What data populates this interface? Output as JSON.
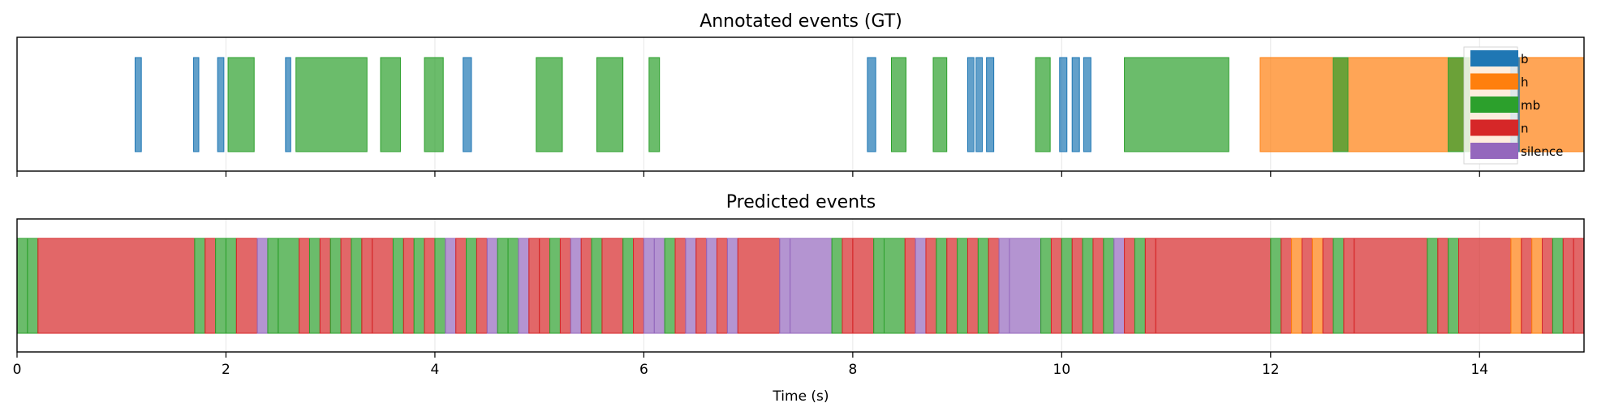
{
  "chart_data": [
    {
      "type": "timeline",
      "title": "Annotated events (GT)",
      "xlim": [
        0,
        15
      ],
      "grid": true,
      "legend": {
        "placement": "top-right",
        "entries": [
          {
            "label": "b",
            "color": "#1f77b4"
          },
          {
            "label": "h",
            "color": "#ff7f0e"
          },
          {
            "label": "mb",
            "color": "#2ca02c"
          },
          {
            "label": "n",
            "color": "#d62728"
          },
          {
            "label": "silence",
            "color": "#9467bd"
          }
        ]
      },
      "events": [
        {
          "start": 1.13,
          "end": 1.19,
          "label": "b"
        },
        {
          "start": 1.69,
          "end": 1.74,
          "label": "b"
        },
        {
          "start": 1.92,
          "end": 1.98,
          "label": "b"
        },
        {
          "start": 2.02,
          "end": 2.27,
          "label": "mb"
        },
        {
          "start": 2.57,
          "end": 2.62,
          "label": "b"
        },
        {
          "start": 2.67,
          "end": 3.35,
          "label": "mb"
        },
        {
          "start": 3.48,
          "end": 3.67,
          "label": "mb"
        },
        {
          "start": 3.9,
          "end": 4.08,
          "label": "mb"
        },
        {
          "start": 4.27,
          "end": 4.35,
          "label": "b"
        },
        {
          "start": 4.97,
          "end": 5.22,
          "label": "mb"
        },
        {
          "start": 5.55,
          "end": 5.8,
          "label": "mb"
        },
        {
          "start": 6.05,
          "end": 6.15,
          "label": "mb"
        },
        {
          "start": 8.14,
          "end": 8.22,
          "label": "b"
        },
        {
          "start": 8.37,
          "end": 8.51,
          "label": "mb"
        },
        {
          "start": 8.77,
          "end": 8.9,
          "label": "mb"
        },
        {
          "start": 9.1,
          "end": 9.16,
          "label": "b"
        },
        {
          "start": 9.18,
          "end": 9.24,
          "label": "b"
        },
        {
          "start": 9.28,
          "end": 9.35,
          "label": "b"
        },
        {
          "start": 9.75,
          "end": 9.89,
          "label": "mb"
        },
        {
          "start": 9.98,
          "end": 10.05,
          "label": "b"
        },
        {
          "start": 10.1,
          "end": 10.17,
          "label": "b"
        },
        {
          "start": 10.21,
          "end": 10.28,
          "label": "b"
        },
        {
          "start": 10.6,
          "end": 11.6,
          "label": "mb"
        },
        {
          "start": 11.9,
          "end": 15.0,
          "label": "h"
        },
        {
          "start": 12.6,
          "end": 12.74,
          "label": "mb"
        },
        {
          "start": 13.7,
          "end": 13.9,
          "label": "mb"
        },
        {
          "start": 14.3,
          "end": 14.38,
          "label": "b"
        }
      ]
    },
    {
      "type": "timeline",
      "title": "Predicted events",
      "xlim": [
        0,
        15
      ],
      "xlabel": "Time (s)",
      "xticks": [
        0,
        2,
        4,
        6,
        8,
        10,
        12,
        14
      ],
      "grid": true,
      "events": [
        {
          "start": 0.0,
          "end": 0.1,
          "label": "mb"
        },
        {
          "start": 0.1,
          "end": 0.2,
          "label": "mb"
        },
        {
          "start": 0.2,
          "end": 1.7,
          "label": "n"
        },
        {
          "start": 1.7,
          "end": 1.8,
          "label": "mb"
        },
        {
          "start": 1.8,
          "end": 1.9,
          "label": "n"
        },
        {
          "start": 1.9,
          "end": 2.0,
          "label": "mb"
        },
        {
          "start": 2.0,
          "end": 2.1,
          "label": "mb"
        },
        {
          "start": 2.1,
          "end": 2.3,
          "label": "n"
        },
        {
          "start": 2.3,
          "end": 2.4,
          "label": "silence"
        },
        {
          "start": 2.4,
          "end": 2.5,
          "label": "mb"
        },
        {
          "start": 2.5,
          "end": 2.7,
          "label": "mb"
        },
        {
          "start": 2.7,
          "end": 2.8,
          "label": "n"
        },
        {
          "start": 2.8,
          "end": 2.9,
          "label": "mb"
        },
        {
          "start": 2.9,
          "end": 3.0,
          "label": "n"
        },
        {
          "start": 3.0,
          "end": 3.1,
          "label": "mb"
        },
        {
          "start": 3.1,
          "end": 3.2,
          "label": "n"
        },
        {
          "start": 3.2,
          "end": 3.3,
          "label": "mb"
        },
        {
          "start": 3.3,
          "end": 3.4,
          "label": "n"
        },
        {
          "start": 3.4,
          "end": 3.6,
          "label": "n"
        },
        {
          "start": 3.6,
          "end": 3.7,
          "label": "mb"
        },
        {
          "start": 3.7,
          "end": 3.8,
          "label": "n"
        },
        {
          "start": 3.8,
          "end": 3.9,
          "label": "mb"
        },
        {
          "start": 3.9,
          "end": 4.0,
          "label": "n"
        },
        {
          "start": 4.0,
          "end": 4.1,
          "label": "mb"
        },
        {
          "start": 4.1,
          "end": 4.2,
          "label": "silence"
        },
        {
          "start": 4.2,
          "end": 4.3,
          "label": "n"
        },
        {
          "start": 4.3,
          "end": 4.4,
          "label": "mb"
        },
        {
          "start": 4.4,
          "end": 4.5,
          "label": "n"
        },
        {
          "start": 4.5,
          "end": 4.6,
          "label": "silence"
        },
        {
          "start": 4.6,
          "end": 4.7,
          "label": "mb"
        },
        {
          "start": 4.7,
          "end": 4.8,
          "label": "mb"
        },
        {
          "start": 4.8,
          "end": 4.9,
          "label": "silence"
        },
        {
          "start": 4.9,
          "end": 5.0,
          "label": "n"
        },
        {
          "start": 5.0,
          "end": 5.1,
          "label": "n"
        },
        {
          "start": 5.1,
          "end": 5.2,
          "label": "mb"
        },
        {
          "start": 5.2,
          "end": 5.3,
          "label": "n"
        },
        {
          "start": 5.3,
          "end": 5.4,
          "label": "silence"
        },
        {
          "start": 5.4,
          "end": 5.5,
          "label": "n"
        },
        {
          "start": 5.5,
          "end": 5.6,
          "label": "mb"
        },
        {
          "start": 5.6,
          "end": 5.8,
          "label": "n"
        },
        {
          "start": 5.8,
          "end": 5.9,
          "label": "mb"
        },
        {
          "start": 5.9,
          "end": 6.0,
          "label": "n"
        },
        {
          "start": 6.0,
          "end": 6.1,
          "label": "silence"
        },
        {
          "start": 6.1,
          "end": 6.2,
          "label": "silence"
        },
        {
          "start": 6.2,
          "end": 6.3,
          "label": "mb"
        },
        {
          "start": 6.3,
          "end": 6.4,
          "label": "n"
        },
        {
          "start": 6.4,
          "end": 6.5,
          "label": "silence"
        },
        {
          "start": 6.5,
          "end": 6.6,
          "label": "n"
        },
        {
          "start": 6.6,
          "end": 6.7,
          "label": "silence"
        },
        {
          "start": 6.7,
          "end": 6.8,
          "label": "n"
        },
        {
          "start": 6.8,
          "end": 6.9,
          "label": "silence"
        },
        {
          "start": 6.9,
          "end": 7.3,
          "label": "n"
        },
        {
          "start": 7.3,
          "end": 7.4,
          "label": "silence"
        },
        {
          "start": 7.4,
          "end": 7.8,
          "label": "silence"
        },
        {
          "start": 7.8,
          "end": 7.9,
          "label": "mb"
        },
        {
          "start": 7.9,
          "end": 8.0,
          "label": "n"
        },
        {
          "start": 8.0,
          "end": 8.2,
          "label": "n"
        },
        {
          "start": 8.2,
          "end": 8.3,
          "label": "mb"
        },
        {
          "start": 8.3,
          "end": 8.5,
          "label": "mb"
        },
        {
          "start": 8.5,
          "end": 8.6,
          "label": "n"
        },
        {
          "start": 8.6,
          "end": 8.7,
          "label": "silence"
        },
        {
          "start": 8.7,
          "end": 8.8,
          "label": "n"
        },
        {
          "start": 8.8,
          "end": 8.9,
          "label": "mb"
        },
        {
          "start": 8.9,
          "end": 9.0,
          "label": "n"
        },
        {
          "start": 9.0,
          "end": 9.1,
          "label": "mb"
        },
        {
          "start": 9.1,
          "end": 9.2,
          "label": "n"
        },
        {
          "start": 9.2,
          "end": 9.3,
          "label": "mb"
        },
        {
          "start": 9.3,
          "end": 9.4,
          "label": "n"
        },
        {
          "start": 9.4,
          "end": 9.5,
          "label": "silence"
        },
        {
          "start": 9.5,
          "end": 9.8,
          "label": "silence"
        },
        {
          "start": 9.8,
          "end": 9.9,
          "label": "mb"
        },
        {
          "start": 9.9,
          "end": 10.0,
          "label": "n"
        },
        {
          "start": 10.0,
          "end": 10.1,
          "label": "mb"
        },
        {
          "start": 10.1,
          "end": 10.2,
          "label": "n"
        },
        {
          "start": 10.2,
          "end": 10.3,
          "label": "mb"
        },
        {
          "start": 10.3,
          "end": 10.4,
          "label": "n"
        },
        {
          "start": 10.4,
          "end": 10.5,
          "label": "mb"
        },
        {
          "start": 10.5,
          "end": 10.6,
          "label": "silence"
        },
        {
          "start": 10.6,
          "end": 10.7,
          "label": "n"
        },
        {
          "start": 10.7,
          "end": 10.8,
          "label": "mb"
        },
        {
          "start": 10.8,
          "end": 10.9,
          "label": "n"
        },
        {
          "start": 10.9,
          "end": 12.0,
          "label": "n"
        },
        {
          "start": 12.0,
          "end": 12.1,
          "label": "mb"
        },
        {
          "start": 12.1,
          "end": 12.2,
          "label": "n"
        },
        {
          "start": 12.2,
          "end": 12.3,
          "label": "h"
        },
        {
          "start": 12.3,
          "end": 12.4,
          "label": "n"
        },
        {
          "start": 12.4,
          "end": 12.5,
          "label": "h"
        },
        {
          "start": 12.5,
          "end": 12.6,
          "label": "n"
        },
        {
          "start": 12.6,
          "end": 12.7,
          "label": "mb"
        },
        {
          "start": 12.7,
          "end": 12.8,
          "label": "n"
        },
        {
          "start": 12.8,
          "end": 13.5,
          "label": "n"
        },
        {
          "start": 13.5,
          "end": 13.6,
          "label": "mb"
        },
        {
          "start": 13.6,
          "end": 13.7,
          "label": "n"
        },
        {
          "start": 13.7,
          "end": 13.8,
          "label": "mb"
        },
        {
          "start": 13.8,
          "end": 14.3,
          "label": "n"
        },
        {
          "start": 14.3,
          "end": 14.4,
          "label": "h"
        },
        {
          "start": 14.4,
          "end": 14.5,
          "label": "n"
        },
        {
          "start": 14.5,
          "end": 14.6,
          "label": "h"
        },
        {
          "start": 14.6,
          "end": 14.7,
          "label": "n"
        },
        {
          "start": 14.7,
          "end": 14.8,
          "label": "mb"
        },
        {
          "start": 14.8,
          "end": 14.9,
          "label": "n"
        },
        {
          "start": 14.9,
          "end": 15.0,
          "label": "n"
        }
      ]
    }
  ]
}
